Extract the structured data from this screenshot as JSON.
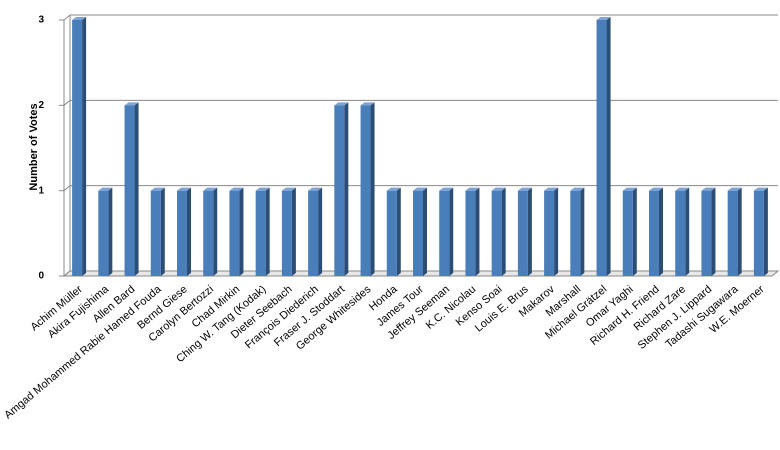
{
  "chart_data": {
    "type": "bar",
    "y_label": "Number of Votes",
    "categories": [
      "Achim Müller",
      "Akira Fujishima",
      "Allen Bard",
      "Amgad Mohammed Rabie Hamed Fouda",
      "Bernd Giese",
      "Carolyn Bertozzi",
      "Chad Mirkin",
      "Ching W. Tang (Kodak)",
      "Dieter Seebach",
      "François Diederich",
      "Fraser J. Stoddart",
      "George Whitesides",
      "Honda",
      "James Tour",
      "Jeffrey Seeman",
      "K.C. Nicolau",
      "Kenso Soai",
      "Louis E. Brus",
      "Makarov",
      "Marshall",
      "Michael Grätzel",
      "Omar Yaghi",
      "Richard H. Friend",
      "Richard Zare",
      "Stephen J. Lippard",
      "Tadashi Sugawara",
      "W.E. Moerner"
    ],
    "values": [
      3,
      1,
      2,
      1,
      1,
      1,
      1,
      1,
      1,
      1,
      2,
      2,
      1,
      1,
      1,
      1,
      1,
      1,
      1,
      1,
      3,
      1,
      1,
      1,
      1,
      1,
      1
    ],
    "color": "#4a7ebb",
    "ylim": [
      0,
      3
    ],
    "yticks": [
      0,
      1,
      2,
      3
    ],
    "grid": true
  }
}
